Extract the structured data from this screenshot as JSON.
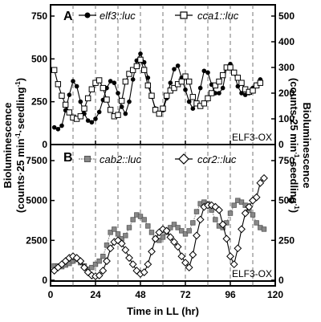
{
  "chart_data": [
    {
      "panel": "A",
      "type": "line",
      "annotation": "ELF3-OX",
      "x_domain": [
        0,
        120
      ],
      "left_ylim": [
        0,
        750
      ],
      "right_ylim": [
        0,
        500
      ],
      "xticks": [
        0,
        24,
        48,
        72,
        96,
        120
      ],
      "left_yticks": [
        0,
        250,
        500,
        750
      ],
      "right_yticks": [
        0,
        100,
        200,
        300,
        400,
        500
      ],
      "gridlines_x": [
        12,
        24,
        36,
        48,
        60,
        72,
        84,
        96,
        108
      ],
      "series": [
        {
          "name": "elf3::luc",
          "axis": "left",
          "marker": "filled-circle",
          "color": "#000000",
          "x": [
            2,
            4,
            6,
            8,
            10,
            12,
            14,
            16,
            18,
            20,
            22,
            24,
            26,
            28,
            30,
            32,
            34,
            36,
            38,
            40,
            42,
            44,
            46,
            48,
            50,
            52,
            54,
            56,
            58,
            60,
            62,
            64,
            66,
            68,
            70,
            72,
            74,
            76,
            78,
            80,
            82,
            84,
            86,
            88,
            90,
            92,
            94,
            96,
            98,
            100,
            102,
            104,
            106,
            108,
            110,
            112
          ],
          "y": [
            100,
            90,
            110,
            200,
            290,
            370,
            340,
            250,
            180,
            140,
            130,
            150,
            190,
            260,
            330,
            370,
            360,
            300,
            220,
            180,
            250,
            380,
            490,
            530,
            480,
            390,
            280,
            210,
            180,
            200,
            270,
            360,
            440,
            460,
            390,
            320,
            250,
            210,
            240,
            330,
            430,
            420,
            350,
            300,
            300,
            330,
            450,
            470,
            420,
            340,
            300,
            290,
            300,
            330,
            350,
            380
          ]
        },
        {
          "name": "cca1::luc",
          "axis": "right",
          "marker": "open-square",
          "color": "#000000",
          "x": [
            2,
            4,
            6,
            8,
            10,
            12,
            14,
            16,
            18,
            20,
            22,
            24,
            26,
            28,
            30,
            32,
            34,
            36,
            38,
            40,
            42,
            44,
            46,
            48,
            50,
            52,
            54,
            56,
            58,
            60,
            62,
            64,
            66,
            68,
            70,
            72,
            74,
            76,
            78,
            80,
            82,
            84,
            86,
            88,
            90,
            92,
            94,
            96,
            98,
            100,
            102,
            104,
            106,
            108,
            110,
            112
          ],
          "y": [
            290,
            235,
            190,
            155,
            125,
            105,
            100,
            110,
            140,
            180,
            215,
            240,
            250,
            220,
            175,
            135,
            110,
            115,
            170,
            245,
            275,
            290,
            305,
            330,
            290,
            230,
            190,
            135,
            120,
            140,
            190,
            210,
            220,
            235,
            245,
            265,
            245,
            185,
            160,
            150,
            160,
            180,
            200,
            230,
            245,
            270,
            300,
            300,
            280,
            260,
            240,
            215,
            205,
            210,
            230,
            240
          ]
        }
      ]
    },
    {
      "panel": "B",
      "type": "line",
      "annotation": "ELF3-OX",
      "x_domain": [
        0,
        120
      ],
      "left_ylim": [
        0,
        7500
      ],
      "right_ylim": [
        0,
        750
      ],
      "xticks": [
        0,
        24,
        48,
        72,
        96,
        120
      ],
      "left_yticks": [
        0,
        2500,
        5000,
        7500
      ],
      "right_yticks": [
        0,
        250,
        500,
        750
      ],
      "gridlines_x": [
        12,
        24,
        36,
        48,
        60,
        72,
        84,
        96,
        108
      ],
      "series": [
        {
          "name": "cab2::luc",
          "axis": "left",
          "marker": "filled-square",
          "color": "#888888",
          "x": [
            2,
            4,
            6,
            8,
            10,
            12,
            14,
            16,
            18,
            20,
            22,
            24,
            26,
            28,
            30,
            32,
            34,
            36,
            38,
            40,
            42,
            44,
            46,
            48,
            50,
            52,
            54,
            56,
            58,
            60,
            62,
            64,
            66,
            68,
            70,
            72,
            74,
            76,
            78,
            80,
            82,
            84,
            86,
            88,
            90,
            92,
            94,
            96,
            98,
            100,
            102,
            104,
            106,
            108,
            110,
            112,
            114
          ],
          "y": [
            900,
            900,
            850,
            950,
            1050,
            1200,
            1300,
            1100,
            900,
            700,
            800,
            1000,
            1200,
            1500,
            2200,
            3000,
            3200,
            2900,
            2600,
            2800,
            3300,
            3800,
            4100,
            4000,
            3800,
            3400,
            3000,
            2600,
            2500,
            2700,
            3000,
            3300,
            3500,
            3300,
            3100,
            2900,
            3100,
            3600,
            4300,
            4800,
            4900,
            4800,
            4400,
            3800,
            3400,
            3300,
            3600,
            4200,
            4700,
            5000,
            4900,
            4700,
            4400,
            4100,
            3600,
            3300,
            3200
          ]
        },
        {
          "name": "ccr2::luc",
          "axis": "right",
          "marker": "open-diamond",
          "color": "#000000",
          "x": [
            2,
            4,
            6,
            8,
            10,
            12,
            14,
            16,
            18,
            20,
            22,
            24,
            26,
            28,
            30,
            32,
            34,
            36,
            38,
            40,
            42,
            44,
            46,
            48,
            50,
            52,
            54,
            56,
            58,
            60,
            62,
            64,
            66,
            68,
            70,
            72,
            74,
            76,
            78,
            80,
            82,
            84,
            86,
            88,
            90,
            92,
            94,
            96,
            98,
            100,
            102,
            104,
            106,
            108,
            110,
            112,
            114
          ],
          "y": [
            60,
            80,
            100,
            120,
            140,
            150,
            140,
            120,
            80,
            50,
            30,
            25,
            30,
            60,
            120,
            200,
            240,
            250,
            230,
            190,
            140,
            100,
            60,
            40,
            50,
            100,
            180,
            260,
            300,
            320,
            310,
            270,
            240,
            210,
            150,
            110,
            80,
            160,
            280,
            380,
            460,
            470,
            470,
            460,
            440,
            350,
            260,
            150,
            100,
            200,
            320,
            420,
            460,
            500,
            520,
            610,
            640
          ]
        }
      ]
    }
  ],
  "labels": {
    "left_axis_line1": "Bioluminescence",
    "left_axis_line2_main": "(counts·25 min",
    "left_axis_line2_sup1": "-1",
    "left_axis_line2_mid": "·seedling",
    "left_axis_line2_sup2": "-1",
    "left_axis_line2_end": ")",
    "right_axis_line1": "Bioluminescence",
    "right_axis_line2_main": "(counts·25 min",
    "right_axis_line2_sup1": "-1",
    "right_axis_line2_mid": "·seedling",
    "right_axis_line2_sup2": "-1",
    "right_axis_line2_end": ")",
    "x_axis_title": "Time in LL (hr)",
    "panel_a_letter": "A",
    "panel_b_letter": "B",
    "legend_a1": "elf3::luc",
    "legend_a2": "cca1::luc",
    "legend_b1": "cab2::luc",
    "legend_b2": "ccr2::luc",
    "note_a": "ELF3-OX",
    "note_b": "ELF3-OX"
  }
}
